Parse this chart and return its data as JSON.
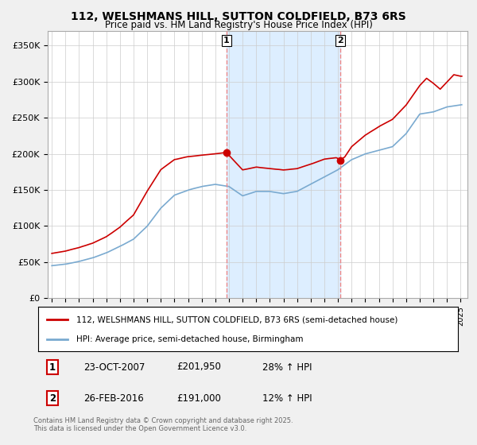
{
  "title": "112, WELSHMANS HILL, SUTTON COLDFIELD, B73 6RS",
  "subtitle": "Price paid vs. HM Land Registry's House Price Index (HPI)",
  "background_color": "#f0f0f0",
  "plot_bg_color": "#ffffff",
  "legend1_label": "112, WELSHMANS HILL, SUTTON COLDFIELD, B73 6RS (semi-detached house)",
  "legend2_label": "HPI: Average price, semi-detached house, Birmingham",
  "sale1_date": "23-OCT-2007",
  "sale1_price_str": "£201,950",
  "sale1_price": 201950,
  "sale1_hpi": "28% ↑ HPI",
  "sale2_date": "26-FEB-2016",
  "sale2_price_str": "£191,000",
  "sale2_price": 191000,
  "sale2_hpi": "12% ↑ HPI",
  "copyright_text": "Contains HM Land Registry data © Crown copyright and database right 2025.\nThis data is licensed under the Open Government Licence v3.0.",
  "line1_color": "#cc0000",
  "line2_color": "#7aaad0",
  "vline_color": "#ee8888",
  "shade_color": "#ddeeff",
  "sale1_x": 2007.81,
  "sale2_x": 2016.15,
  "xlim_left": 1994.7,
  "xlim_right": 2025.5
}
